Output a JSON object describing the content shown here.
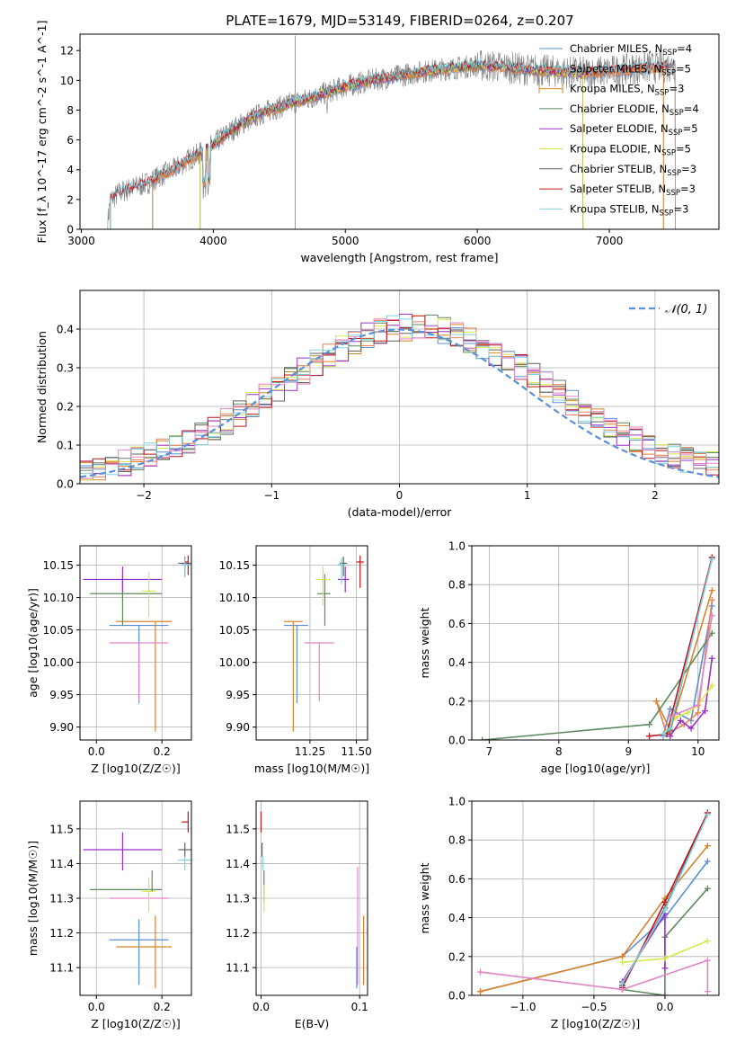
{
  "figure": {
    "title": "PLATE=1679, MJD=53149, FIBERID=0264, z=0.207"
  },
  "colors": {
    "chabrier_miles": "#5b8fd8",
    "salpeter_miles": "#e8825a",
    "kroupa_miles": "#d9822b",
    "chabrier_elodie": "#5e8a5e",
    "salpeter_elodie": "#9b30c4",
    "kroupa_elodie": "#d6e84a",
    "chabrier_stelib": "#606060",
    "salpeter_stelib": "#c0141c",
    "kroupa_stelib": "#7dd4e0",
    "pink_fit": "#e483c6",
    "normal_curve": "#5b8fd8",
    "grid": "#b0b0b0"
  },
  "chart_data": [
    {
      "id": "spectrum",
      "type": "line",
      "xlabel": "wavelength [Angstrom, rest frame]",
      "ylabel": "Flux [f_λ 10^-17 erg cm^-2 s^-1 A^-1]",
      "xlim": [
        2990,
        7830
      ],
      "ylim": [
        0,
        13.1
      ],
      "xticks": [
        3000,
        4000,
        5000,
        6000,
        7000
      ],
      "yticks": [
        0,
        2,
        4,
        6,
        8,
        10,
        12
      ],
      "grid": false,
      "legend_position": "right",
      "series": [
        {
          "name": "Chabrier MILES, N_SSP=4",
          "color_key": "chabrier_miles"
        },
        {
          "name": "Salpeter MILES, N_SSP=5",
          "color_key": "salpeter_miles"
        },
        {
          "name": "Kroupa MILES, N_SSP=3",
          "color_key": "kroupa_miles"
        },
        {
          "name": "Chabrier ELODIE, N_SSP=4",
          "color_key": "chabrier_elodie"
        },
        {
          "name": "Salpeter ELODIE, N_SSP=5",
          "color_key": "salpeter_elodie"
        },
        {
          "name": "Kroupa ELODIE, N_SSP=5",
          "color_key": "kroupa_elodie"
        },
        {
          "name": "Chabrier STELIB, N_SSP=3",
          "color_key": "chabrier_stelib"
        },
        {
          "name": "Salpeter STELIB, N_SSP=3",
          "color_key": "salpeter_stelib"
        },
        {
          "name": "Kroupa STELIB, N_SSP=3",
          "color_key": "kroupa_stelib"
        }
      ],
      "continuum": {
        "x": [
          3200,
          3220,
          3300,
          3400,
          3500,
          3600,
          3700,
          3800,
          3900,
          4000,
          4100,
          4200,
          4300,
          4400,
          4500,
          4600,
          4700,
          4800,
          4900,
          5000,
          5200,
          5400,
          5600,
          5800,
          6000,
          6200,
          6400,
          6600,
          6800,
          7000,
          7200,
          7400,
          7500
        ],
        "y": [
          0.5,
          2.0,
          2.5,
          2.8,
          3.1,
          3.6,
          4.0,
          4.6,
          5.1,
          5.7,
          6.4,
          7.0,
          7.5,
          7.9,
          8.2,
          8.5,
          8.7,
          9.0,
          9.3,
          9.6,
          10.0,
          10.3,
          10.6,
          10.8,
          11.0,
          10.9,
          10.7,
          10.6,
          10.5,
          10.6,
          10.8,
          10.9,
          11.0
        ]
      }
    },
    {
      "id": "residuals",
      "type": "step",
      "xlabel": "(data-model)/error",
      "ylabel": "Normed distribution",
      "xlim": [
        -2.5,
        2.5
      ],
      "ylim": [
        0,
        0.5
      ],
      "xticks": [
        -2,
        -1,
        0,
        1,
        2
      ],
      "yticks": [
        0.0,
        0.1,
        0.2,
        0.3,
        0.4
      ],
      "grid": true,
      "legend_position": "top-right",
      "legend": "𝒩(0, 1)",
      "bin_width": 0.1
    },
    {
      "id": "age_vs_Z",
      "type": "errorbar",
      "xlabel": "Z [log10(Z/Z☉)]",
      "ylabel": "age [log10(age/yr)]",
      "xlim": [
        -0.05,
        0.29
      ],
      "ylim": [
        9.88,
        10.18
      ],
      "xticks": [
        0.0,
        0.2
      ],
      "yticks": [
        9.9,
        9.95,
        10.0,
        10.05,
        10.1,
        10.15
      ],
      "grid": true,
      "points": [
        {
          "c": "chabrier_miles",
          "x": 0.13,
          "xe": [
            0.09,
            0.09
          ],
          "y": 10.057,
          "ye": [
            0.12,
            0.0
          ]
        },
        {
          "c": "kroupa_miles",
          "x": 0.18,
          "xe": [
            0.12,
            0.05
          ],
          "y": 10.063,
          "ye": [
            0.17,
            0.0
          ]
        },
        {
          "c": "pink_fit",
          "x": 0.13,
          "xe": [
            0.09,
            0.09
          ],
          "y": 10.03,
          "ye": [
            0.09,
            0.0
          ]
        },
        {
          "c": "chabrier_elodie",
          "x": 0.08,
          "xe": [
            0.1,
            0.12
          ],
          "y": 10.106,
          "ye": [
            0.05,
            0.03
          ]
        },
        {
          "c": "salpeter_elodie",
          "x": 0.08,
          "xe": [
            0.12,
            0.12
          ],
          "y": 10.128,
          "ye": [
            0.02,
            0.02
          ]
        },
        {
          "c": "kroupa_elodie",
          "x": 0.16,
          "xe": [
            0.02,
            0.02
          ],
          "y": 10.11,
          "ye": [
            0.04,
            0.03
          ]
        },
        {
          "c": "chabrier_stelib",
          "x": 0.27,
          "xe": [
            0.02,
            0.02
          ],
          "y": 10.153,
          "ye": [
            0.02,
            0.01
          ]
        },
        {
          "c": "salpeter_stelib",
          "x": 0.28,
          "xe": [
            0.01,
            0.0
          ],
          "y": 10.155,
          "ye": [
            0.02,
            0.01
          ]
        },
        {
          "c": "kroupa_stelib",
          "x": 0.27,
          "xe": [
            0.01,
            0.02
          ],
          "y": 10.151,
          "ye": [
            0.02,
            0.01
          ]
        }
      ]
    },
    {
      "id": "age_vs_mass",
      "type": "errorbar",
      "xlabel": "mass [log10(M/M☉)]",
      "ylabel": "",
      "xlim": [
        10.96,
        11.56
      ],
      "ylim": [
        9.88,
        10.18
      ],
      "xticks": [
        11.25,
        11.5
      ],
      "yticks": [
        9.9,
        9.95,
        10.0,
        10.05,
        10.1,
        10.15
      ],
      "grid": true,
      "points": [
        {
          "c": "chabrier_miles",
          "x": 11.18,
          "xe": [
            0.07,
            0.06
          ],
          "y": 10.057,
          "ye": [
            0.12,
            0.0
          ]
        },
        {
          "c": "kroupa_miles",
          "x": 11.16,
          "xe": [
            0.05,
            0.05
          ],
          "y": 10.063,
          "ye": [
            0.17,
            0.0
          ]
        },
        {
          "c": "pink_fit",
          "x": 11.3,
          "xe": [
            0.08,
            0.08
          ],
          "y": 10.03,
          "ye": [
            0.09,
            0.0
          ]
        },
        {
          "c": "chabrier_elodie",
          "x": 11.33,
          "xe": [
            0.04,
            0.03
          ],
          "y": 10.106,
          "ye": [
            0.05,
            0.03
          ]
        },
        {
          "c": "kroupa_elodie",
          "x": 11.32,
          "xe": [
            0.04,
            0.04
          ],
          "y": 10.128,
          "ye": [
            0.04,
            0.02
          ]
        },
        {
          "c": "salpeter_elodie",
          "x": 11.44,
          "xe": [
            0.04,
            0.02
          ],
          "y": 10.128,
          "ye": [
            0.02,
            0.02
          ]
        },
        {
          "c": "chabrier_stelib",
          "x": 11.43,
          "xe": [
            0.02,
            0.02
          ],
          "y": 10.153,
          "ye": [
            0.02,
            0.01
          ]
        },
        {
          "c": "kroupa_stelib",
          "x": 11.42,
          "xe": [
            0.02,
            0.02
          ],
          "y": 10.151,
          "ye": [
            0.03,
            0.01
          ]
        },
        {
          "c": "salpeter_stelib",
          "x": 11.52,
          "xe": [
            0.02,
            0.02
          ],
          "y": 10.155,
          "ye": [
            0.04,
            0.01
          ]
        }
      ]
    },
    {
      "id": "weight_vs_age",
      "type": "line",
      "xlabel": "age [log10(age/yr)]",
      "ylabel": "mass weight",
      "xlim": [
        6.75,
        10.3
      ],
      "ylim": [
        0,
        1.0
      ],
      "xticks": [
        7,
        8,
        9,
        10
      ],
      "yticks": [
        0.0,
        0.2,
        0.4,
        0.6,
        0.8,
        1.0
      ],
      "grid": true,
      "series": [
        {
          "c": "chabrier_miles",
          "x": [
            9.5,
            9.6,
            9.9,
            10.2
          ],
          "y": [
            0.02,
            0.16,
            0.1,
            0.69
          ]
        },
        {
          "c": "salpeter_miles",
          "x": [
            9.4,
            9.55,
            9.8,
            10.0,
            10.2
          ],
          "y": [
            0.2,
            0.03,
            0.08,
            0.14,
            0.72
          ]
        },
        {
          "c": "kroupa_miles",
          "x": [
            9.4,
            9.6,
            10.2
          ],
          "y": [
            0.2,
            0.05,
            0.77
          ]
        },
        {
          "c": "chabrier_elodie",
          "x": [
            6.9,
            9.3,
            10.2
          ],
          "y": [
            0.0,
            0.08,
            0.55
          ]
        },
        {
          "c": "salpeter_elodie",
          "x": [
            9.6,
            9.75,
            9.9,
            10.1,
            10.2
          ],
          "y": [
            0.02,
            0.1,
            0.06,
            0.15,
            0.42
          ]
        },
        {
          "c": "kroupa_elodie",
          "x": [
            9.5,
            9.7,
            9.85,
            10.0,
            10.2
          ],
          "y": [
            0.03,
            0.12,
            0.14,
            0.18,
            0.28
          ]
        },
        {
          "c": "chabrier_stelib",
          "x": [
            9.5,
            9.6,
            10.2
          ],
          "y": [
            0.03,
            0.05,
            0.94
          ]
        },
        {
          "c": "salpeter_stelib",
          "x": [
            9.3,
            9.55,
            10.2
          ],
          "y": [
            0.02,
            0.03,
            0.94
          ]
        },
        {
          "c": "kroupa_stelib",
          "x": [
            9.5,
            9.6,
            10.2
          ],
          "y": [
            0.03,
            0.06,
            0.93
          ]
        },
        {
          "c": "pink_fit",
          "x": [
            9.6,
            10.0,
            10.2
          ],
          "y": [
            0.12,
            0.18,
            0.64
          ]
        }
      ]
    },
    {
      "id": "mass_vs_Z",
      "type": "errorbar",
      "xlabel": "Z [log10(Z/Z☉)]",
      "ylabel": "mass [log10(M/M☉)]",
      "xlim": [
        -0.05,
        0.29
      ],
      "ylim": [
        11.02,
        11.58
      ],
      "xticks": [
        0.0,
        0.2
      ],
      "yticks": [
        11.1,
        11.2,
        11.3,
        11.4,
        11.5
      ],
      "grid": true,
      "points": [
        {
          "c": "chabrier_miles",
          "x": 0.13,
          "xe": [
            0.09,
            0.09
          ],
          "y": 11.18,
          "ye": [
            0.13,
            0.06
          ]
        },
        {
          "c": "kroupa_miles",
          "x": 0.18,
          "xe": [
            0.12,
            0.05
          ],
          "y": 11.16,
          "ye": [
            0.12,
            0.09
          ]
        },
        {
          "c": "pink_fit",
          "x": 0.13,
          "xe": [
            0.09,
            0.09
          ],
          "y": 11.3,
          "ye": [
            0.0,
            0.0
          ]
        },
        {
          "c": "chabrier_elodie",
          "x": 0.08,
          "xe": [
            0.1,
            0.12
          ],
          "y": 11.325,
          "ye": [
            0.0,
            0.0
          ]
        },
        {
          "c": "kroupa_elodie",
          "x": 0.16,
          "xe": [
            0.02,
            0.02
          ],
          "y": 11.32,
          "ye": [
            0.06,
            0.04
          ]
        },
        {
          "c": "chabrier_elodie",
          "x": 0.17,
          "xe": [
            0.0,
            0.0
          ],
          "y": 11.32,
          "ye": [
            0.0,
            0.06
          ]
        },
        {
          "c": "salpeter_elodie",
          "x": 0.08,
          "xe": [
            0.12,
            0.12
          ],
          "y": 11.44,
          "ye": [
            0.06,
            0.05
          ]
        },
        {
          "c": "chabrier_stelib",
          "x": 0.27,
          "xe": [
            0.02,
            0.02
          ],
          "y": 11.44,
          "ye": [
            0.02,
            0.02
          ]
        },
        {
          "c": "kroupa_stelib",
          "x": 0.27,
          "xe": [
            0.02,
            0.02
          ],
          "y": 11.41,
          "ye": [
            0.03,
            0.01
          ]
        },
        {
          "c": "salpeter_stelib",
          "x": 0.28,
          "xe": [
            0.02,
            0.0
          ],
          "y": 11.52,
          "ye": [
            0.03,
            0.03
          ]
        }
      ]
    },
    {
      "id": "mass_vs_ebv",
      "type": "errorbar",
      "xlabel": "E(B-V)",
      "ylabel": "",
      "xlim": [
        -0.005,
        0.108
      ],
      "ylim": [
        11.02,
        11.58
      ],
      "xticks": [
        0.0,
        0.1
      ],
      "yticks": [
        11.1,
        11.2,
        11.3,
        11.4,
        11.5
      ],
      "grid": true,
      "points": [
        {
          "c": "salpeter_stelib",
          "x": 0.0,
          "xe": [
            0.0,
            0.0
          ],
          "y": 11.52,
          "ye": [
            0.03,
            0.03
          ]
        },
        {
          "c": "chabrier_stelib",
          "x": 0.001,
          "xe": [
            0.0,
            0.0
          ],
          "y": 11.44,
          "ye": [
            0.02,
            0.02
          ]
        },
        {
          "c": "kroupa_stelib",
          "x": 0.002,
          "xe": [
            0.0,
            0.0
          ],
          "y": 11.41,
          "ye": [
            0.03,
            0.01
          ]
        },
        {
          "c": "chabrier_elodie",
          "x": 0.003,
          "xe": [
            0.0,
            0.0
          ],
          "y": 11.33,
          "ye": [
            0.04,
            0.05
          ]
        },
        {
          "c": "kroupa_elodie",
          "x": 0.003,
          "xe": [
            0.0,
            0.0
          ],
          "y": 11.3,
          "ye": [
            0.04,
            0.04
          ]
        },
        {
          "c": "pink_fit",
          "x": 0.098,
          "xe": [
            0.0,
            0.0
          ],
          "y": 11.22,
          "ye": [
            0.17,
            0.17
          ]
        },
        {
          "c": "chabrier_miles",
          "x": 0.097,
          "xe": [
            0.0,
            0.0
          ],
          "y": 11.1,
          "ye": [
            0.06,
            0.06
          ]
        },
        {
          "c": "kroupa_miles",
          "x": 0.104,
          "xe": [
            0.0,
            0.0
          ],
          "y": 11.15,
          "ye": [
            0.1,
            0.1
          ]
        }
      ]
    },
    {
      "id": "weight_vs_Z",
      "type": "line",
      "xlabel": "Z [log10(Z/Z☉)]",
      "ylabel": "mass weight",
      "xlim": [
        -1.36,
        0.38
      ],
      "ylim": [
        0,
        1.0
      ],
      "xticks": [
        -1.0,
        -0.5,
        0.0
      ],
      "yticks": [
        0.0,
        0.2,
        0.4,
        0.6,
        0.8,
        1.0
      ],
      "grid": true,
      "series": [
        {
          "c": "chabrier_miles",
          "x": [
            -1.3,
            -0.3,
            0.0,
            0.3
          ],
          "y": [
            0.02,
            0.2,
            0.4,
            0.69
          ]
        },
        {
          "c": "kroupa_miles",
          "x": [
            -1.3,
            -0.3,
            0.0,
            0.3
          ],
          "y": [
            0.02,
            0.2,
            0.5,
            0.77
          ]
        },
        {
          "c": "chabrier_elodie",
          "x": [
            -0.3,
            0.0,
            0.0,
            0.3
          ],
          "y": [
            0.03,
            0.0,
            0.3,
            0.55
          ]
        },
        {
          "c": "salpeter_elodie",
          "x": [
            -0.3,
            0.0,
            0.0
          ],
          "y": [
            0.07,
            0.42,
            0.14
          ]
        },
        {
          "c": "kroupa_elodie",
          "x": [
            -0.3,
            0.0,
            0.3
          ],
          "y": [
            0.17,
            0.19,
            0.28
          ]
        },
        {
          "c": "chabrier_stelib",
          "x": [
            -0.3,
            0.0,
            0.3
          ],
          "y": [
            0.05,
            0.45,
            0.94
          ]
        },
        {
          "c": "salpeter_stelib",
          "x": [
            -0.3,
            0.0,
            0.3
          ],
          "y": [
            0.04,
            0.48,
            0.94
          ]
        },
        {
          "c": "kroupa_stelib",
          "x": [
            -0.3,
            0.0,
            0.3
          ],
          "y": [
            0.06,
            0.44,
            0.93
          ]
        },
        {
          "c": "pink_fit",
          "x": [
            -1.3,
            -0.3,
            0.3,
            0.3
          ],
          "y": [
            0.12,
            0.03,
            0.18,
            0.02
          ]
        }
      ]
    }
  ]
}
